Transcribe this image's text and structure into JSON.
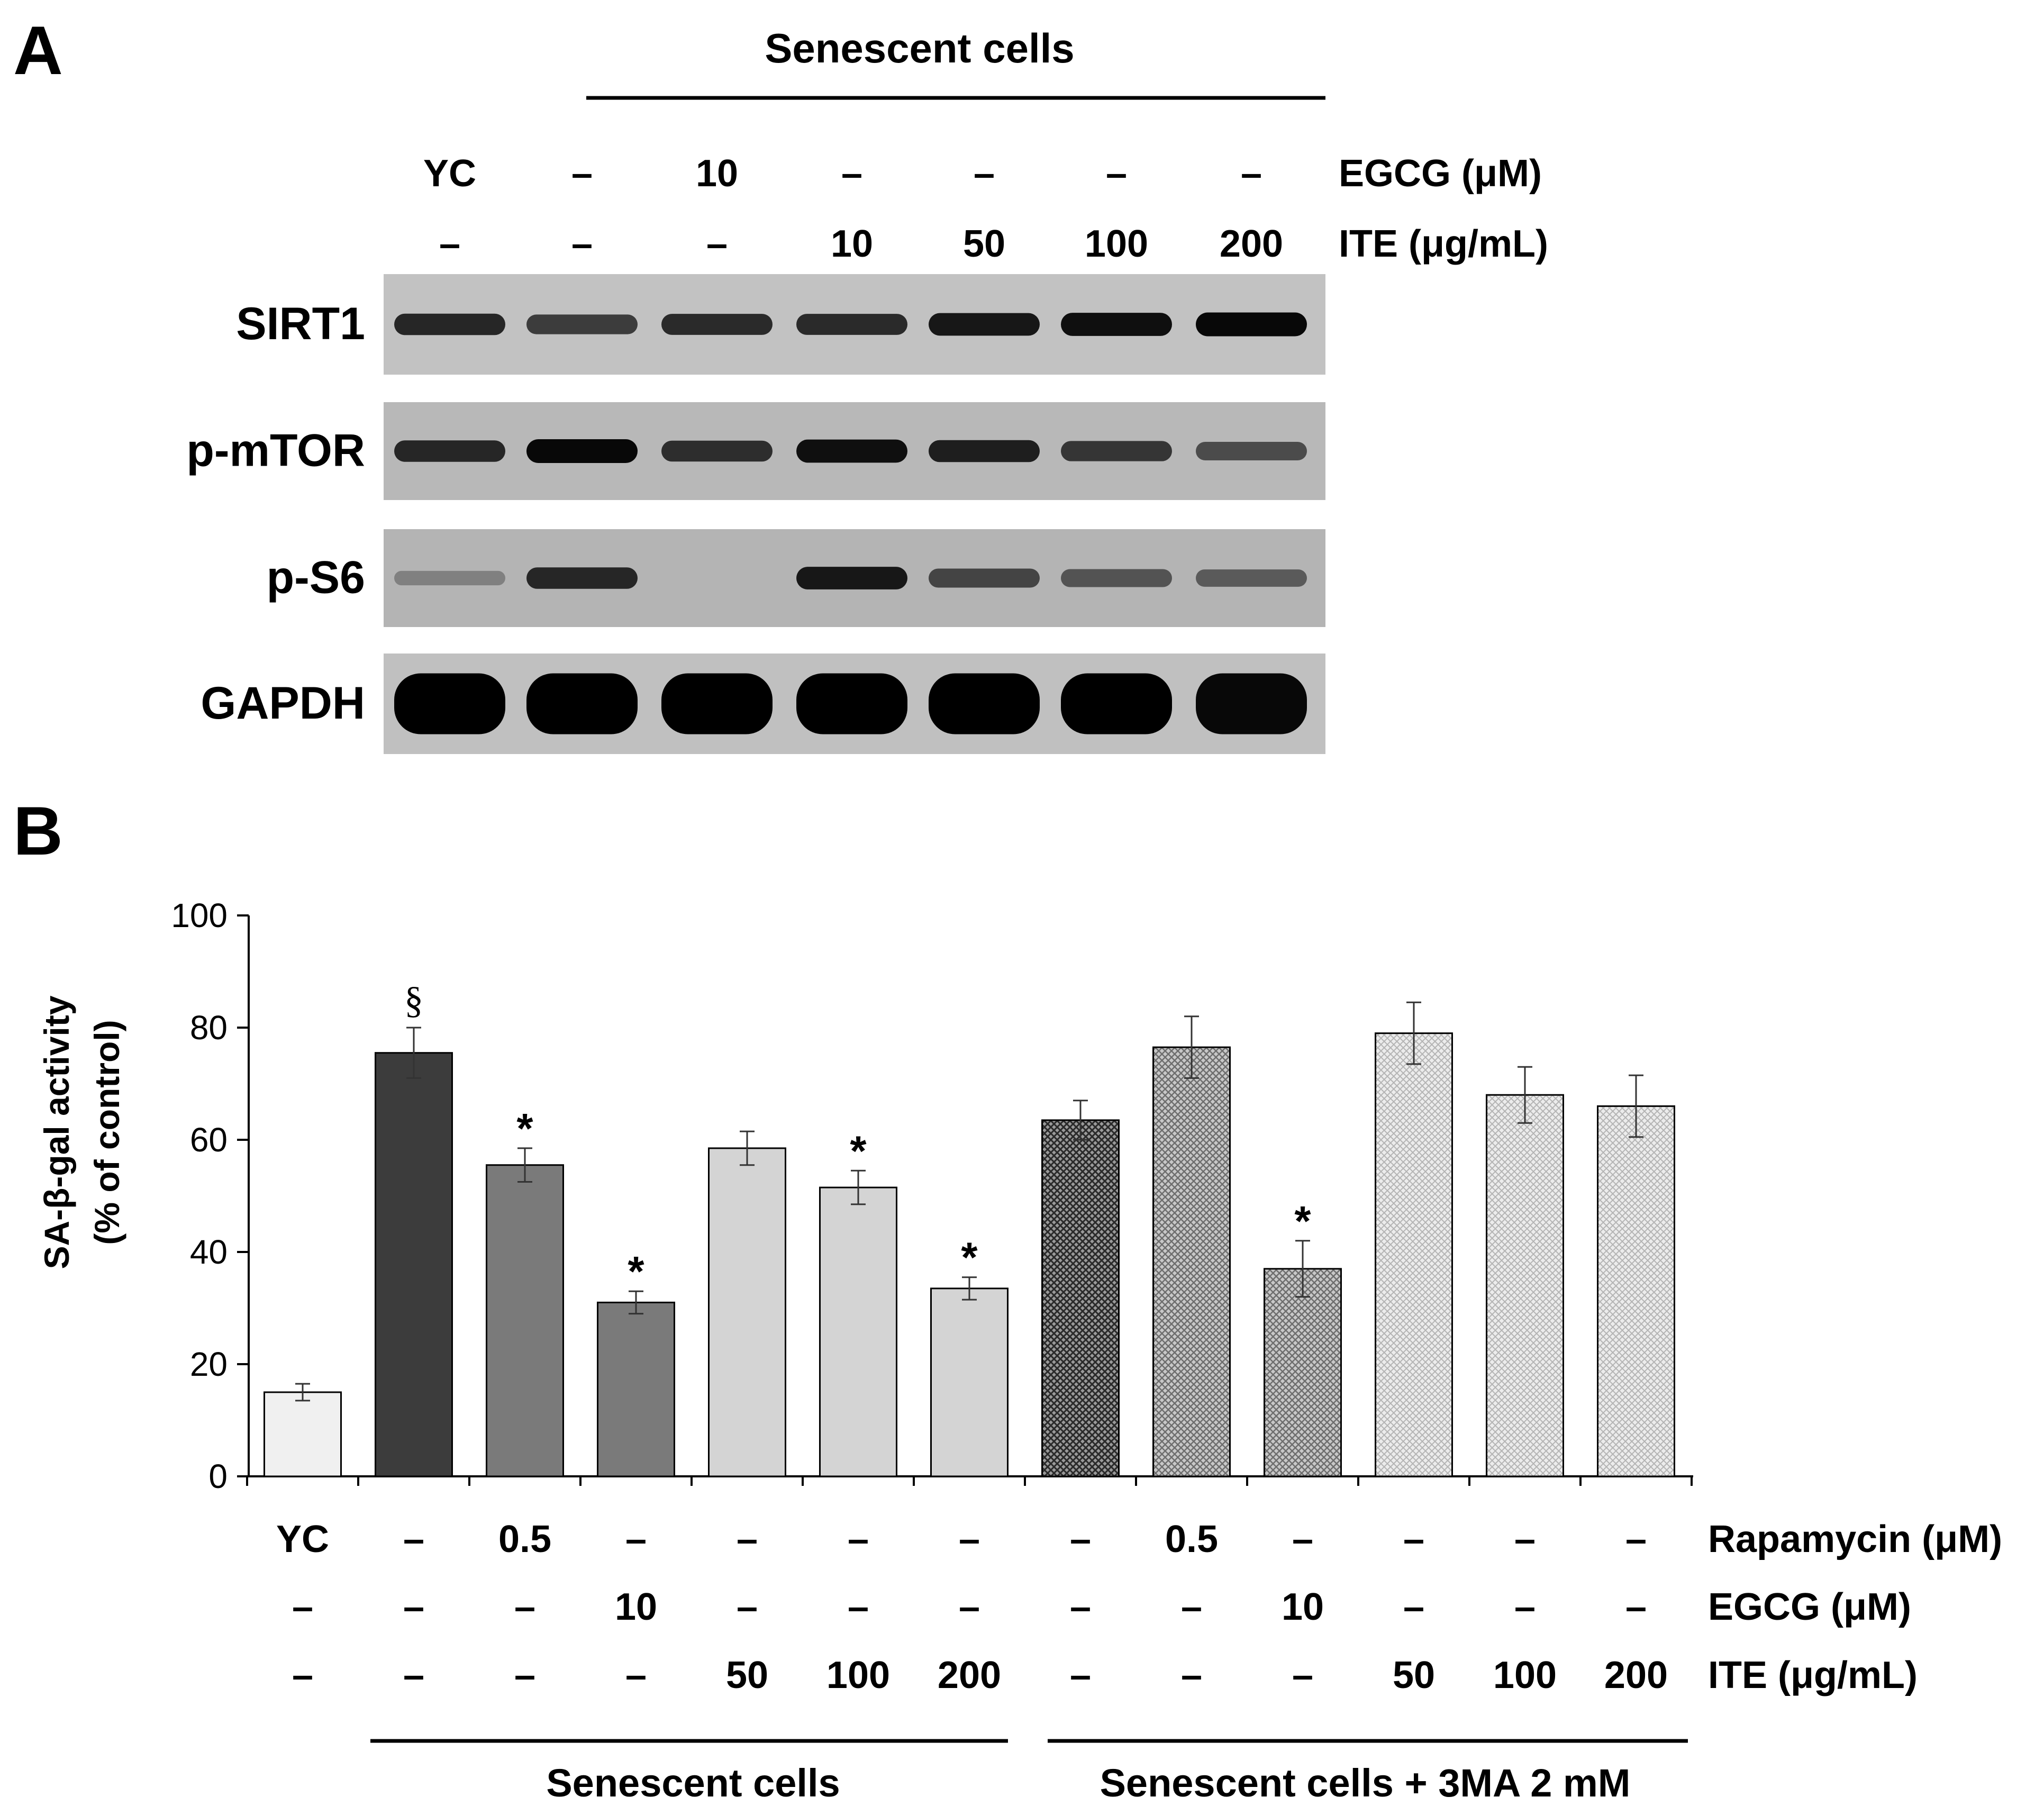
{
  "panel_a": {
    "letter": "A",
    "group_label": "Senescent cells",
    "row_labels": [
      "EGCG (μM)",
      "ITE (μg/mL)"
    ],
    "lanes": [
      {
        "egcg": "YC",
        "ite": "–"
      },
      {
        "egcg": "–",
        "ite": "–"
      },
      {
        "egcg": "10",
        "ite": "–"
      },
      {
        "egcg": "–",
        "ite": "10"
      },
      {
        "egcg": "–",
        "ite": "50"
      },
      {
        "egcg": "–",
        "ite": "100"
      },
      {
        "egcg": "–",
        "ite": "200"
      }
    ],
    "blots": [
      {
        "name": "SIRT1",
        "band_intensity": [
          0.75,
          0.6,
          0.72,
          0.72,
          0.85,
          0.9,
          0.95
        ]
      },
      {
        "name": "p-mTOR",
        "band_intensity": [
          0.75,
          0.95,
          0.7,
          0.9,
          0.8,
          0.65,
          0.5
        ]
      },
      {
        "name": "p-S6",
        "band_intensity": [
          0.15,
          0.75,
          0.0,
          0.85,
          0.55,
          0.45,
          0.4
        ]
      },
      {
        "name": "GAPDH",
        "band_intensity": [
          1,
          1,
          1,
          1,
          1,
          1,
          0.95
        ]
      }
    ]
  },
  "chart_data": {
    "type": "bar",
    "panel_letter": "B",
    "ylabel_line1": "SA-β-gal activity",
    "ylabel_line2": "(% of control)",
    "ylim": [
      0,
      100
    ],
    "yticks": [
      "0",
      "20",
      "40",
      "60",
      "80",
      "100"
    ],
    "values": [
      15,
      75.5,
      55.5,
      31,
      58.5,
      51.5,
      33.5,
      63.5,
      76.5,
      37,
      79,
      68,
      66
    ],
    "errors": [
      1.5,
      4.5,
      3.0,
      2.0,
      3.0,
      3.0,
      2.0,
      3.5,
      5.5,
      5.0,
      5.5,
      5.0,
      5.5
    ],
    "annotations": [
      "",
      "§",
      "*",
      "*",
      "",
      "*",
      "*",
      "",
      "",
      "*",
      "",
      "",
      ""
    ],
    "colors": [
      "#f0f0f0",
      "#3c3c3c",
      "#7a7a7a",
      "#7a7a7a",
      "#d4d4d4",
      "#d4d4d4",
      "#d4d4d4",
      "dark-hatch",
      "mid-hatch",
      "mid-hatch",
      "light-hatch",
      "light-hatch",
      "light-hatch"
    ],
    "condition_labels": [
      "Rapamycin (μM)",
      "EGCG (μM)",
      "ITE (μg/mL)"
    ],
    "conditions": [
      {
        "rapamycin": "YC",
        "egcg": "–",
        "ite": "–"
      },
      {
        "rapamycin": "–",
        "egcg": "–",
        "ite": "–"
      },
      {
        "rapamycin": "0.5",
        "egcg": "–",
        "ite": "–"
      },
      {
        "rapamycin": "–",
        "egcg": "10",
        "ite": "–"
      },
      {
        "rapamycin": "–",
        "egcg": "–",
        "ite": "50"
      },
      {
        "rapamycin": "–",
        "egcg": "–",
        "ite": "100"
      },
      {
        "rapamycin": "–",
        "egcg": "–",
        "ite": "200"
      },
      {
        "rapamycin": "–",
        "egcg": "–",
        "ite": "–"
      },
      {
        "rapamycin": "0.5",
        "egcg": "–",
        "ite": "–"
      },
      {
        "rapamycin": "–",
        "egcg": "10",
        "ite": "–"
      },
      {
        "rapamycin": "–",
        "egcg": "–",
        "ite": "50"
      },
      {
        "rapamycin": "–",
        "egcg": "–",
        "ite": "100"
      },
      {
        "rapamycin": "–",
        "egcg": "–",
        "ite": "200"
      }
    ],
    "groups": [
      {
        "label": "Senescent cells"
      },
      {
        "label": "Senescent cells + 3MA 2 mM"
      }
    ]
  }
}
